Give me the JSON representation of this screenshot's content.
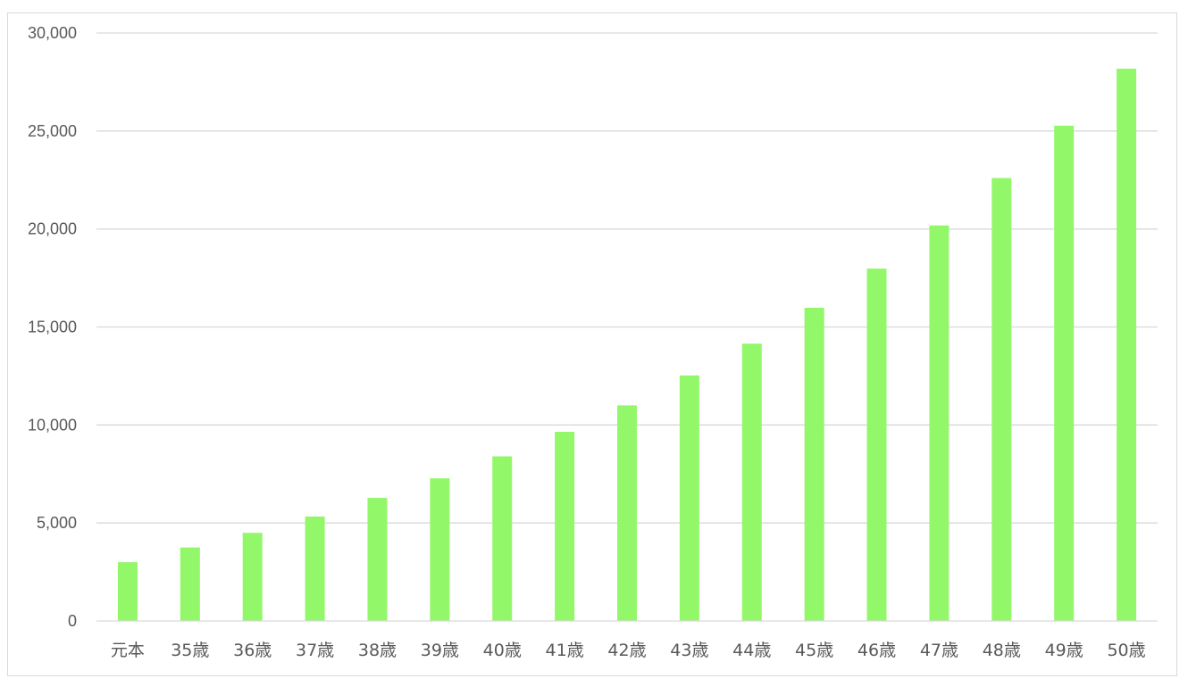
{
  "chart_data": {
    "type": "bar",
    "title": "",
    "xlabel": "",
    "ylabel": "",
    "ylim": [
      0,
      30000
    ],
    "y_ticks": [
      0,
      5000,
      10000,
      15000,
      20000,
      25000,
      30000
    ],
    "y_tick_labels": [
      "0",
      "5,000",
      "10,000",
      "15,000",
      "20,000",
      "25,000",
      "30,000"
    ],
    "grid": true,
    "legend": "none",
    "bar_color": "#93f76a",
    "grid_color": "#d9d9d9",
    "categories": [
      "元本",
      "35歳",
      "36歳",
      "37歳",
      "38歳",
      "39歳",
      "40歳",
      "41歳",
      "42歳",
      "43歳",
      "44歳",
      "45歳",
      "46歳",
      "47歳",
      "48歳",
      "49歳",
      "50歳"
    ],
    "values": [
      3000,
      3750,
      4500,
      5330,
      6280,
      7280,
      8400,
      9650,
      11000,
      12530,
      14150,
      15980,
      17980,
      20180,
      22600,
      25270,
      28180
    ]
  }
}
